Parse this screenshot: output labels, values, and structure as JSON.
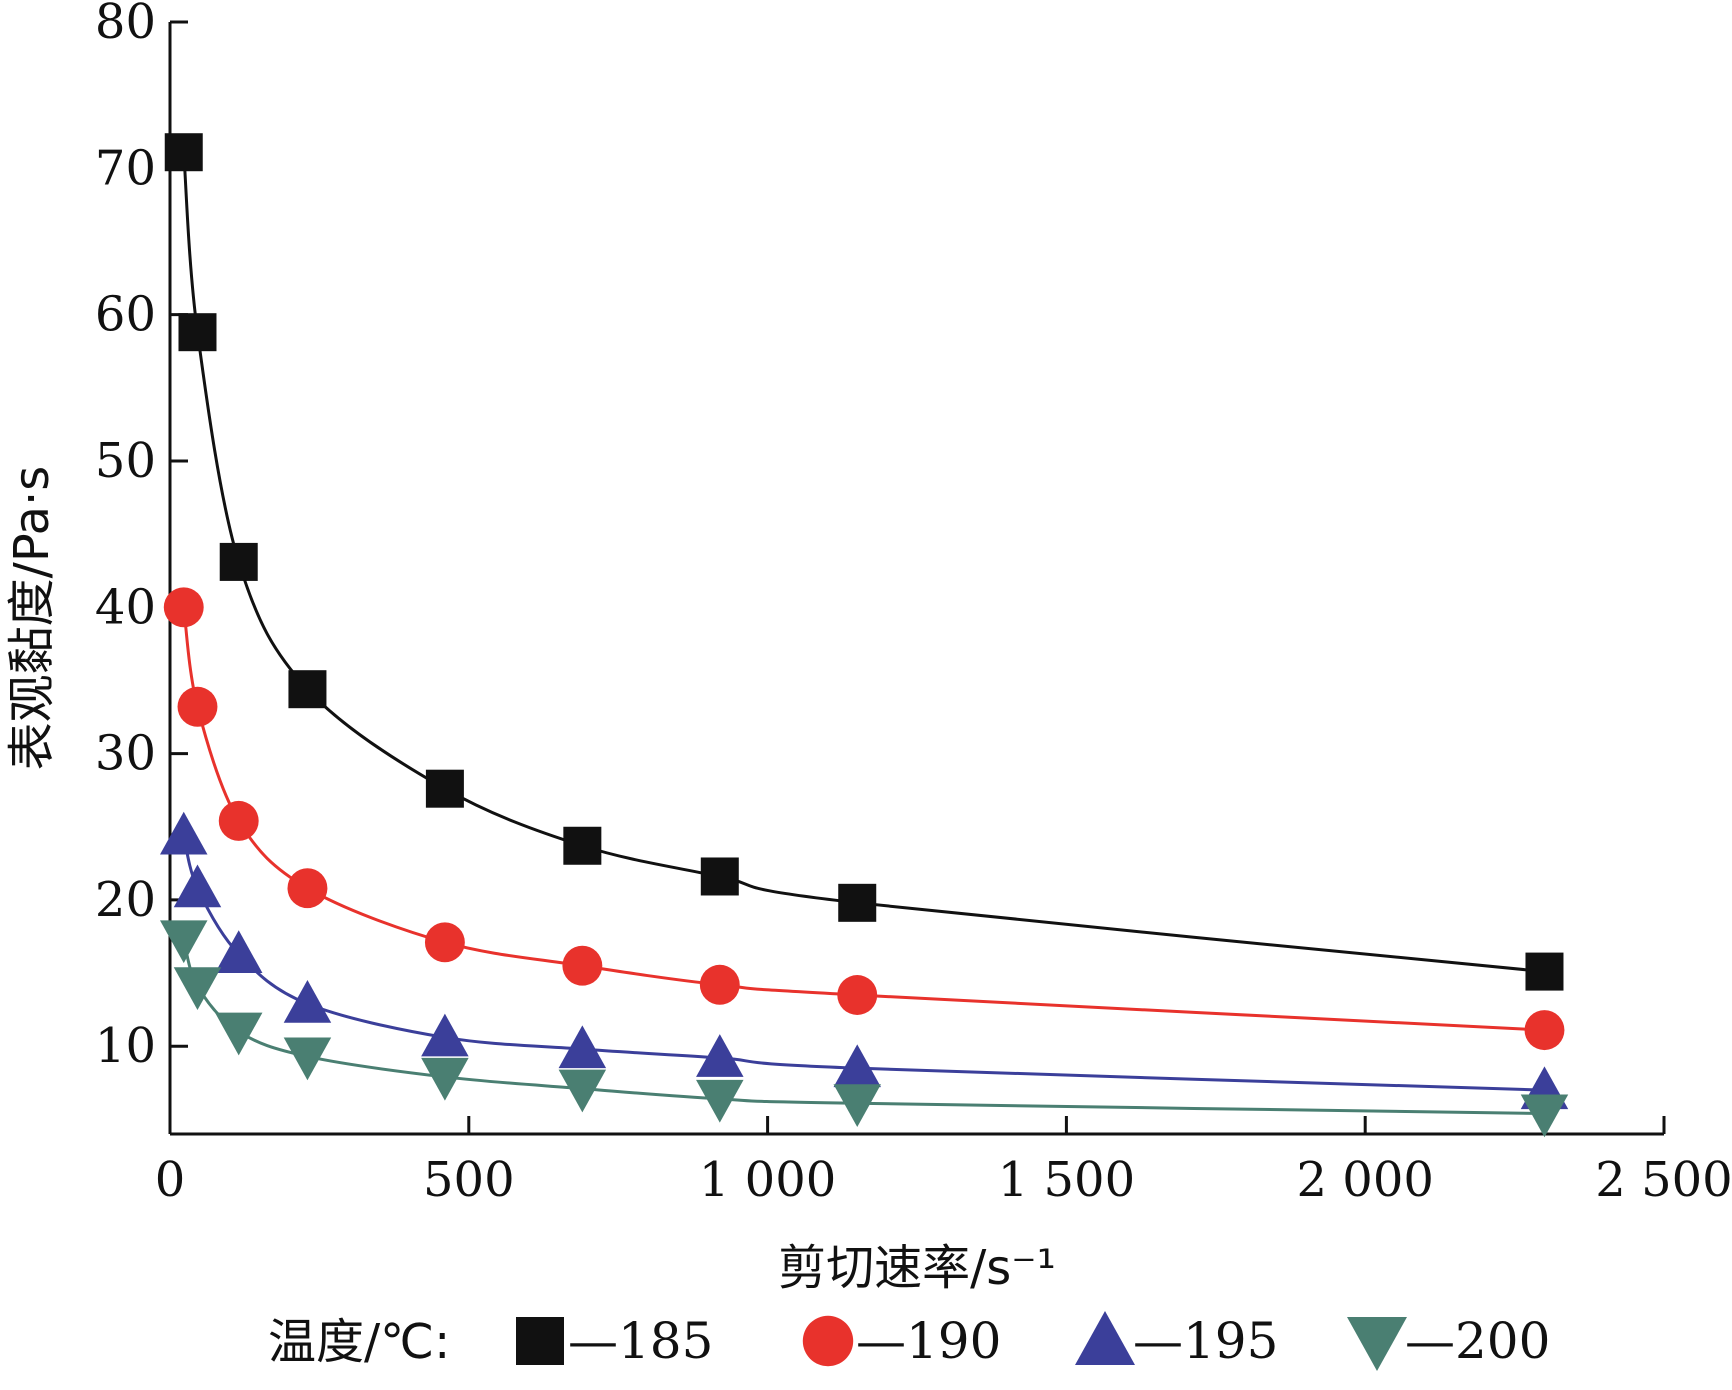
{
  "chart_data": {
    "type": "line",
    "title": "",
    "xlabel": "剪切速率/s⁻¹",
    "ylabel": "表观黏度/Pa·s",
    "xlim": [
      0,
      2500
    ],
    "ylim": [
      4,
      80
    ],
    "x_ticks": [
      0,
      500,
      1000,
      1500,
      2000,
      2500
    ],
    "x_tick_labels": [
      "0",
      "500",
      "1 000",
      "1 500",
      "2 000",
      "2 500"
    ],
    "y_ticks": [
      10,
      20,
      30,
      40,
      50,
      60,
      70,
      80
    ],
    "y_tick_labels": [
      "10",
      "20",
      "30",
      "40",
      "50",
      "60",
      "70",
      "80"
    ],
    "grid": false,
    "legend_title": "温度/℃:",
    "legend_position": "bottom",
    "x": [
      23,
      46,
      115,
      230,
      460,
      690,
      920,
      1150,
      2300
    ],
    "series": [
      {
        "name": "—185",
        "marker": "square",
        "color": "#111111",
        "line_color": "#111111",
        "values": [
          71.1,
          58.8,
          43.1,
          34.4,
          27.6,
          23.7,
          21.6,
          19.8,
          15.1
        ]
      },
      {
        "name": "—190",
        "marker": "circle",
        "color": "#e8322c",
        "line_color": "#e8322c",
        "values": [
          40.0,
          33.2,
          25.4,
          20.8,
          17.1,
          15.5,
          14.2,
          13.5,
          11.1
        ]
      },
      {
        "name": "—195",
        "marker": "triangle-up",
        "color": "#3b3f9a",
        "line_color": "#3b3f9a",
        "values": [
          24.4,
          20.8,
          16.3,
          12.9,
          10.6,
          9.8,
          9.2,
          8.5,
          7.0
        ]
      },
      {
        "name": "—200",
        "marker": "triangle-down",
        "color": "#4a7f72",
        "line_color": "#4a7f72",
        "values": [
          17.3,
          14.1,
          11.0,
          9.3,
          7.9,
          7.1,
          6.4,
          6.1,
          5.4
        ]
      }
    ]
  }
}
